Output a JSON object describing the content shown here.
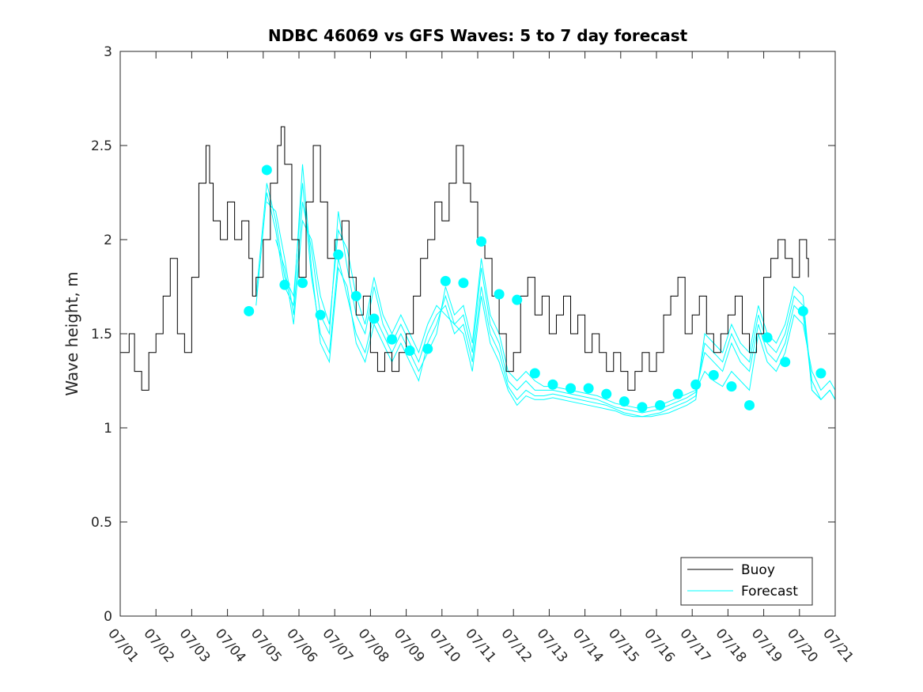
{
  "chart_data": {
    "type": "line",
    "title": "NDBC 46069 vs GFS Waves: 5 to 7 day forecast",
    "xlabel": "",
    "ylabel": "Wave height, m",
    "ylim": [
      0,
      3
    ],
    "yticks": [
      "0",
      "0.5",
      "1",
      "1.5",
      "2",
      "2.5",
      "3"
    ],
    "xlim": [
      1,
      21
    ],
    "xticks": [
      "07/01",
      "07/02",
      "07/03",
      "07/04",
      "07/05",
      "07/06",
      "07/07",
      "07/08",
      "07/09",
      "07/10",
      "07/11",
      "07/12",
      "07/13",
      "07/14",
      "07/15",
      "07/16",
      "07/17",
      "07/18",
      "07/19",
      "07/20",
      "07/21"
    ],
    "grid": false,
    "legend_position": "bottom-right",
    "colors": {
      "buoy": "#000000",
      "forecast": "#00ffff"
    },
    "series": [
      {
        "name": "Buoy",
        "x": [
          1.0,
          1.25,
          1.4,
          1.6,
          1.8,
          2.0,
          2.2,
          2.4,
          2.6,
          2.8,
          3.0,
          3.2,
          3.4,
          3.5,
          3.6,
          3.8,
          4.0,
          4.2,
          4.4,
          4.6,
          4.7,
          4.8,
          5.0,
          5.2,
          5.4,
          5.5,
          5.6,
          5.8,
          6.0,
          6.2,
          6.4,
          6.6,
          6.8,
          7.0,
          7.2,
          7.4,
          7.6,
          7.8,
          8.0,
          8.2,
          8.4,
          8.6,
          8.8,
          9.0,
          9.2,
          9.4,
          9.6,
          9.8,
          10.0,
          10.2,
          10.4,
          10.6,
          10.8,
          11.0,
          11.2,
          11.4,
          11.6,
          11.8,
          12.0,
          12.2,
          12.4,
          12.6,
          12.8,
          13.0,
          13.2,
          13.4,
          13.6,
          13.8,
          14.0,
          14.2,
          14.4,
          14.6,
          14.8,
          15.0,
          15.2,
          15.4,
          15.6,
          15.8,
          16.0,
          16.2,
          16.4,
          16.6,
          16.8,
          17.0,
          17.2,
          17.4,
          17.6,
          17.8,
          18.0,
          18.2,
          18.4,
          18.6,
          18.8,
          19.0,
          19.2,
          19.4,
          19.6,
          19.8,
          20.0,
          20.2,
          20.25
        ],
        "values": [
          1.4,
          1.5,
          1.3,
          1.2,
          1.4,
          1.5,
          1.7,
          1.9,
          1.5,
          1.4,
          1.8,
          2.3,
          2.5,
          2.3,
          2.1,
          2.0,
          2.2,
          2.0,
          2.1,
          1.9,
          1.7,
          1.8,
          2.0,
          2.3,
          2.5,
          2.6,
          2.4,
          2.0,
          1.8,
          2.2,
          2.5,
          2.2,
          1.9,
          2.0,
          2.1,
          1.8,
          1.6,
          1.7,
          1.4,
          1.3,
          1.4,
          1.3,
          1.4,
          1.5,
          1.7,
          1.9,
          2.0,
          2.2,
          2.1,
          2.3,
          2.5,
          2.3,
          2.2,
          2.0,
          1.9,
          1.7,
          1.5,
          1.3,
          1.4,
          1.7,
          1.8,
          1.6,
          1.7,
          1.5,
          1.6,
          1.7,
          1.5,
          1.6,
          1.4,
          1.5,
          1.4,
          1.3,
          1.4,
          1.3,
          1.2,
          1.3,
          1.4,
          1.3,
          1.4,
          1.6,
          1.7,
          1.8,
          1.5,
          1.6,
          1.7,
          1.5,
          1.4,
          1.5,
          1.6,
          1.7,
          1.5,
          1.4,
          1.5,
          1.8,
          1.9,
          2.0,
          1.9,
          1.8,
          2.0,
          1.9,
          1.8
        ]
      },
      {
        "name": "Forecast",
        "x": [
          4.8,
          5.1,
          5.35,
          5.6,
          5.85,
          6.1,
          6.35,
          6.6,
          6.85,
          7.1,
          7.35,
          7.6,
          7.85,
          8.1,
          8.35,
          8.6,
          8.85,
          9.1,
          9.35,
          9.6,
          9.85,
          10.1,
          10.35,
          10.6,
          10.85,
          11.1,
          11.35,
          11.6,
          11.85,
          12.1,
          12.35,
          12.6,
          12.85,
          13.1,
          13.35,
          13.6,
          13.85,
          14.1,
          14.35,
          14.6,
          14.85,
          15.1,
          15.35,
          15.6,
          15.85,
          16.1,
          16.35,
          16.6,
          16.85,
          17.1,
          17.35,
          17.6,
          17.85,
          18.1,
          18.35,
          18.6,
          18.85,
          19.1,
          19.35,
          19.6,
          19.85,
          20.1,
          20.35,
          20.6,
          20.85,
          21.0
        ],
        "values": [
          1.7,
          2.3,
          2.1,
          1.8,
          1.7,
          2.3,
          1.8,
          1.5,
          1.4,
          1.9,
          1.7,
          1.5,
          1.4,
          1.6,
          1.5,
          1.4,
          1.5,
          1.4,
          1.3,
          1.4,
          1.5,
          1.75,
          1.6,
          1.65,
          1.45,
          1.9,
          1.6,
          1.5,
          1.3,
          1.25,
          1.3,
          1.25,
          1.22,
          1.22,
          1.21,
          1.2,
          1.19,
          1.18,
          1.17,
          1.15,
          1.13,
          1.12,
          1.11,
          1.1,
          1.11,
          1.12,
          1.14,
          1.16,
          1.18,
          1.2,
          1.3,
          1.25,
          1.22,
          1.3,
          1.25,
          1.2,
          1.5,
          1.35,
          1.3,
          1.4,
          1.6,
          1.55,
          1.3,
          1.2,
          1.25,
          1.2
        ]
      },
      {
        "name": "Forecast",
        "x": [
          4.8,
          5.1,
          5.35,
          5.6,
          5.85,
          6.1,
          6.35,
          6.6,
          6.85,
          7.1,
          7.35,
          7.6,
          7.85,
          8.1,
          8.35,
          8.6,
          8.85,
          9.1,
          9.35,
          9.6,
          9.85,
          10.1,
          10.35,
          10.6,
          10.85,
          11.1,
          11.35,
          11.6,
          11.85,
          12.1,
          12.35,
          12.6,
          12.85,
          13.1,
          13.35,
          13.6,
          13.85,
          14.1,
          14.35,
          14.6,
          14.85,
          15.1,
          15.35,
          15.6,
          15.85,
          16.1,
          16.35,
          16.6,
          16.85,
          17.1,
          17.35,
          17.6,
          17.85,
          18.1,
          18.35,
          18.6,
          18.85,
          19.1,
          19.35,
          19.6,
          19.85,
          20.1,
          20.35,
          20.6,
          20.85,
          21.0
        ],
        "values": [
          1.65,
          2.25,
          2.05,
          1.75,
          1.65,
          2.4,
          1.85,
          1.45,
          1.35,
          1.85,
          1.75,
          1.45,
          1.35,
          1.55,
          1.45,
          1.35,
          1.45,
          1.35,
          1.25,
          1.45,
          1.55,
          1.7,
          1.55,
          1.6,
          1.4,
          1.85,
          1.55,
          1.45,
          1.25,
          1.2,
          1.25,
          1.2,
          1.2,
          1.2,
          1.19,
          1.18,
          1.17,
          1.16,
          1.15,
          1.13,
          1.11,
          1.1,
          1.09,
          1.08,
          1.09,
          1.1,
          1.12,
          1.14,
          1.16,
          1.19,
          1.4,
          1.35,
          1.3,
          1.45,
          1.35,
          1.3,
          1.55,
          1.4,
          1.35,
          1.45,
          1.65,
          1.6,
          1.25,
          1.15,
          1.2,
          1.15
        ]
      },
      {
        "name": "Forecast",
        "x": [
          5.1,
          5.35,
          5.6,
          5.85,
          6.1,
          6.35,
          6.6,
          6.85,
          7.1,
          7.35,
          7.6,
          7.85,
          8.1,
          8.35,
          8.6,
          8.85,
          9.1,
          9.35,
          9.6,
          9.85,
          10.1,
          10.35,
          10.6,
          10.85,
          11.1,
          11.35,
          11.6,
          11.85,
          12.1,
          12.35,
          12.6,
          12.85,
          13.1,
          13.35,
          13.6,
          13.85,
          14.1,
          14.35,
          14.6,
          14.85,
          15.1,
          15.35,
          15.6,
          15.85,
          16.1,
          16.35,
          16.6,
          16.85,
          17.1,
          17.35,
          17.6,
          17.85,
          18.1,
          18.35,
          18.6,
          18.85,
          19.1,
          19.35,
          19.6,
          19.85,
          20.1,
          20.35,
          20.6,
          20.85,
          21.0
        ],
        "values": [
          2.2,
          2.15,
          1.9,
          1.6,
          2.2,
          1.95,
          1.6,
          1.5,
          2.15,
          1.85,
          1.6,
          1.5,
          1.75,
          1.55,
          1.45,
          1.55,
          1.45,
          1.35,
          1.5,
          1.6,
          1.65,
          1.5,
          1.55,
          1.35,
          1.75,
          1.5,
          1.4,
          1.22,
          1.15,
          1.2,
          1.17,
          1.17,
          1.18,
          1.17,
          1.16,
          1.15,
          1.14,
          1.13,
          1.12,
          1.1,
          1.08,
          1.07,
          1.06,
          1.07,
          1.08,
          1.1,
          1.12,
          1.14,
          1.17,
          1.45,
          1.4,
          1.35,
          1.5,
          1.4,
          1.35,
          1.6,
          1.45,
          1.4,
          1.5,
          1.7,
          1.65,
          1.2,
          1.15,
          1.2,
          1.15
        ]
      },
      {
        "name": "Forecast",
        "x": [
          5.35,
          5.6,
          5.85,
          6.1,
          6.35,
          6.6,
          6.85,
          7.1,
          7.35,
          7.6,
          7.85,
          8.1,
          8.35,
          8.6,
          8.85,
          9.1,
          9.35,
          9.6,
          9.85,
          10.1,
          10.35,
          10.6,
          10.85,
          11.1,
          11.35,
          11.6,
          11.85,
          12.1,
          12.35,
          12.6,
          12.85,
          13.1,
          13.35,
          13.6,
          13.85,
          14.1,
          14.35,
          14.6,
          14.85,
          15.1,
          15.35,
          15.6,
          15.85,
          16.1,
          16.35,
          16.6,
          16.85,
          17.1,
          17.35,
          17.6,
          17.85,
          18.1,
          18.35,
          18.6,
          18.85,
          19.1,
          19.35,
          19.6,
          19.85,
          20.1,
          20.35,
          20.6,
          20.85,
          21.0
        ],
        "values": [
          2.0,
          1.85,
          1.55,
          2.1,
          2.0,
          1.7,
          1.55,
          2.05,
          1.95,
          1.7,
          1.55,
          1.8,
          1.6,
          1.5,
          1.6,
          1.5,
          1.4,
          1.55,
          1.65,
          1.6,
          1.55,
          1.5,
          1.3,
          1.7,
          1.45,
          1.35,
          1.2,
          1.12,
          1.17,
          1.15,
          1.15,
          1.16,
          1.15,
          1.14,
          1.13,
          1.12,
          1.11,
          1.1,
          1.09,
          1.07,
          1.06,
          1.06,
          1.06,
          1.07,
          1.08,
          1.1,
          1.12,
          1.15,
          1.5,
          1.45,
          1.4,
          1.55,
          1.45,
          1.4,
          1.65,
          1.5,
          1.45,
          1.55,
          1.75,
          1.7,
          1.2,
          1.15,
          1.2,
          1.15
        ]
      }
    ],
    "markers": {
      "name": "Forecast",
      "x": [
        4.6,
        5.1,
        5.6,
        6.1,
        6.6,
        7.1,
        7.6,
        8.1,
        8.6,
        9.1,
        9.6,
        10.1,
        10.6,
        11.1,
        11.6,
        12.1,
        12.6,
        13.1,
        13.6,
        14.1,
        14.6,
        15.1,
        15.6,
        16.1,
        16.6,
        17.1,
        17.6,
        18.1,
        18.6,
        19.1,
        19.6,
        20.1,
        20.6
      ],
      "values": [
        1.62,
        2.37,
        1.76,
        1.77,
        1.6,
        1.92,
        1.7,
        1.58,
        1.47,
        1.41,
        1.42,
        1.78,
        1.77,
        1.99,
        1.71,
        1.68,
        1.29,
        1.23,
        1.21,
        1.21,
        1.18,
        1.14,
        1.11,
        1.12,
        1.18,
        1.23,
        1.28,
        1.22,
        1.12,
        1.48,
        1.35,
        1.62,
        1.29
      ]
    },
    "legend": [
      "Buoy",
      "Forecast"
    ]
  }
}
